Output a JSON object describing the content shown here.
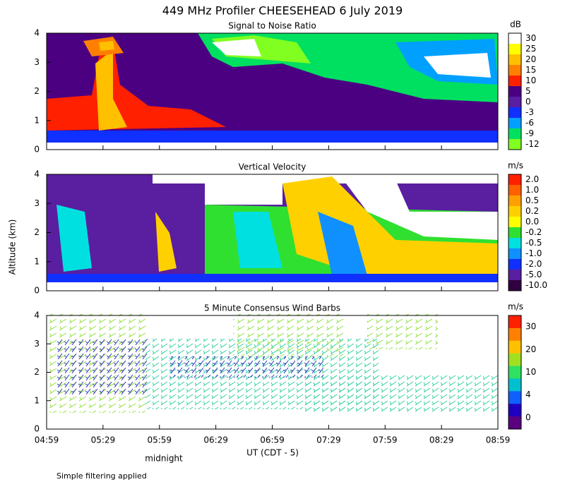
{
  "chart_data": {
    "type": "heatmap",
    "title": "449 MHz Profiler CHEESEHEAD  6 July 2019",
    "y_axis_label": "Altitude (km)",
    "x_axis_label": "UT  (CDT - 5)",
    "x_annotation": "midnight",
    "footnote": "Simple filtering applied",
    "categories": [
      "04:59",
      "05:29",
      "05:59",
      "06:29",
      "06:59",
      "07:29",
      "07:59",
      "08:29",
      "08:59"
    ],
    "panels": [
      {
        "title": "Signal to Noise Ratio",
        "units": "dB",
        "ylim": [
          0,
          4
        ],
        "yticks": [
          0,
          1,
          2,
          3,
          4
        ],
        "colorbar": {
          "labels": [
            30,
            25,
            20,
            15,
            10,
            5,
            0,
            -3,
            -6,
            -9,
            -12
          ],
          "colors": [
            "#ffffff",
            "#ffff00",
            "#ffc000",
            "#ff8000",
            "#ff2000",
            "#4b0082",
            "#5a1ea0",
            "#1030ff",
            "#00a0ff",
            "#00e060",
            "#80ff20"
          ]
        }
      },
      {
        "title": "Vertical Velocity",
        "units": "m/s",
        "ylim": [
          0,
          4
        ],
        "yticks": [
          0,
          1,
          2,
          3,
          4
        ],
        "colorbar": {
          "labels": [
            {
              "value": 2,
              "label": "2.0"
            },
            {
              "value": 1,
              "label": "1.0"
            },
            0.5,
            0.2,
            {
              "value": 0,
              "label": "0.0"
            },
            -0.2,
            -0.5,
            {
              "value": -1,
              "label": "-1.0"
            },
            {
              "value": -2,
              "label": "-2.0"
            },
            {
              "value": -5,
              "label": "-5.0"
            },
            {
              "value": -10,
              "label": "-10.0"
            }
          ],
          "colors": [
            "#ff2000",
            "#ff6000",
            "#ffa000",
            "#ffd000",
            "#ffff00",
            "#30e030",
            "#00e0e0",
            "#1090ff",
            "#1030ff",
            "#5a1ea0",
            "#300040"
          ]
        }
      },
      {
        "title": "5 Minute Consensus Wind Barbs",
        "units": "m/s",
        "ylim": [
          0,
          4
        ],
        "yticks": [
          0,
          1,
          2,
          3,
          4
        ],
        "colorbar": {
          "labels": [
            30,
            20,
            10,
            4,
            0
          ],
          "colors": [
            "#ff2000",
            "#ff8000",
            "#ffc000",
            "#a0e020",
            "#30e060",
            "#00c0d0",
            "#1060ff",
            "#2000c0",
            "#5a0080"
          ]
        }
      }
    ]
  }
}
